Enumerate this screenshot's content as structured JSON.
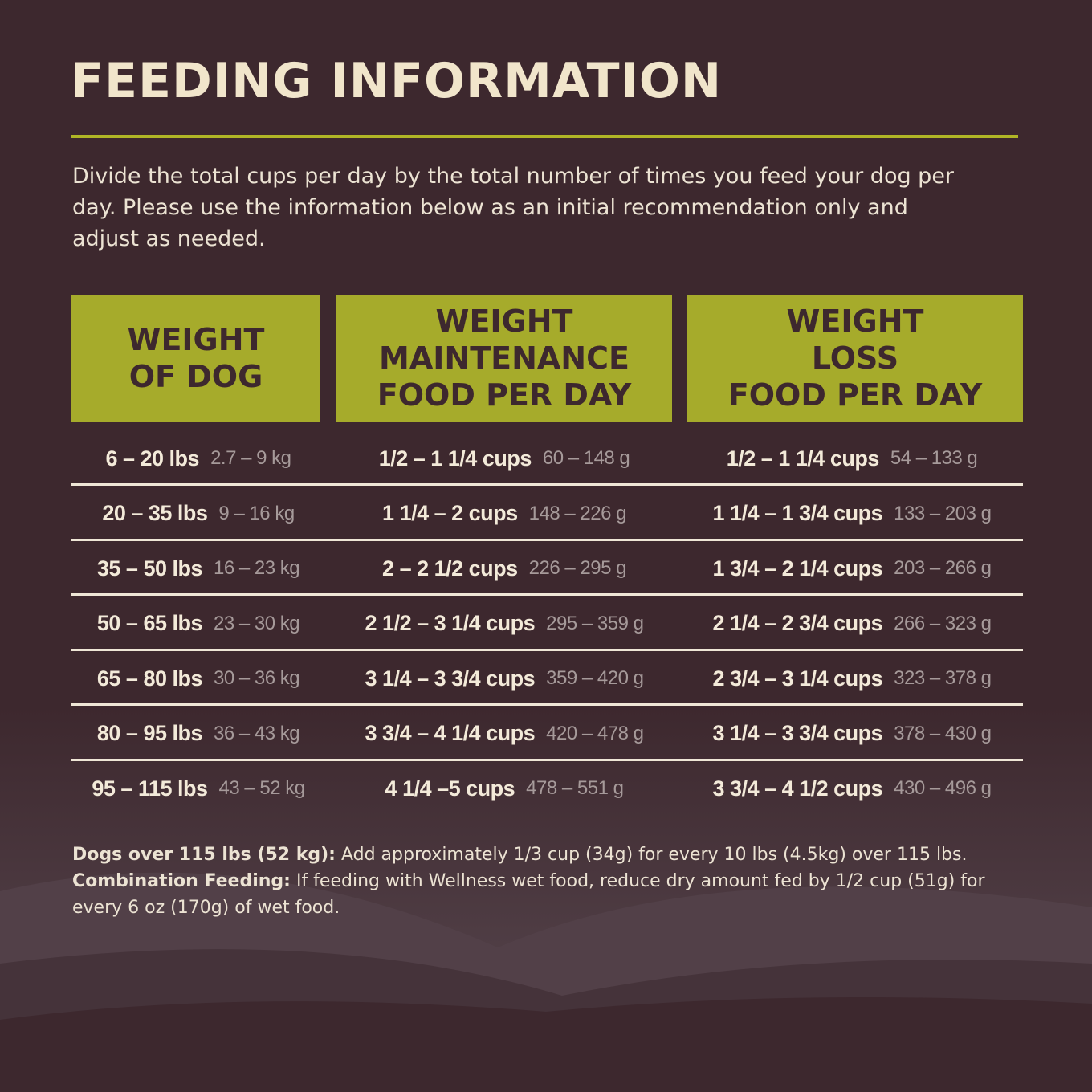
{
  "title": "FEEDING INFORMATION",
  "intro": "Divide the total cups per day by the total number of times you feed your dog per day. Please use the information below as an initial recommendation only and adjust as needed.",
  "table": {
    "headers": [
      [
        "WEIGHT",
        "OF DOG"
      ],
      [
        "WEIGHT",
        "MAINTENANCE",
        "FOOD PER DAY"
      ],
      [
        "WEIGHT",
        "LOSS",
        "FOOD PER DAY"
      ]
    ],
    "rows": [
      [
        {
          "main": "6 – 20 lbs",
          "sub": "2.7 – 9 kg"
        },
        {
          "main": "1/2 – 1 1/4 cups",
          "sub": "60 – 148 g"
        },
        {
          "main": "1/2 – 1 1/4 cups",
          "sub": "54 – 133 g"
        }
      ],
      [
        {
          "main": "20 – 35 lbs",
          "sub": "9 – 16 kg"
        },
        {
          "main": "1 1/4 – 2 cups",
          "sub": "148 – 226 g"
        },
        {
          "main": "1 1/4 – 1 3/4 cups",
          "sub": "133 – 203 g"
        }
      ],
      [
        {
          "main": "35 – 50 lbs",
          "sub": "16 – 23 kg"
        },
        {
          "main": "2 – 2 1/2 cups",
          "sub": "226 – 295 g"
        },
        {
          "main": "1 3/4 – 2 1/4 cups",
          "sub": "203 – 266 g"
        }
      ],
      [
        {
          "main": "50 – 65 lbs",
          "sub": "23 – 30 kg"
        },
        {
          "main": "2 1/2 – 3 1/4 cups",
          "sub": "295 – 359 g"
        },
        {
          "main": "2 1/4 – 2 3/4 cups",
          "sub": "266 – 323 g"
        }
      ],
      [
        {
          "main": "65 – 80 lbs",
          "sub": "30 – 36 kg"
        },
        {
          "main": "3 1/4 – 3 3/4 cups",
          "sub": "359 – 420 g"
        },
        {
          "main": "2 3/4 – 3 1/4 cups",
          "sub": "323 – 378 g"
        }
      ],
      [
        {
          "main": "80 – 95 lbs",
          "sub": "36 – 43 kg"
        },
        {
          "main": "3 3/4 – 4 1/4 cups",
          "sub": "420 – 478 g"
        },
        {
          "main": "3 1/4 – 3 3/4 cups",
          "sub": "378 – 430 g"
        }
      ],
      [
        {
          "main": "95 – 115 lbs",
          "sub": "43 – 52 kg"
        },
        {
          "main": "4 1/4 –5 cups",
          "sub": "478 – 551 g"
        },
        {
          "main": "3 3/4 – 4 1/2 cups",
          "sub": "430 – 496 g"
        }
      ]
    ]
  },
  "footnote": [
    {
      "bold": "Dogs over 115 lbs (52 kg):",
      "text": "Add approximately 1/3 cup (34g) for every 10 lbs (4.5kg) over 115 lbs."
    },
    {
      "bold": "Combination Feeding:",
      "text": "If feeding with Wellness wet food, reduce dry amount fed by 1/2 cup (51g) for every 6 oz (170g) of wet food."
    }
  ]
}
